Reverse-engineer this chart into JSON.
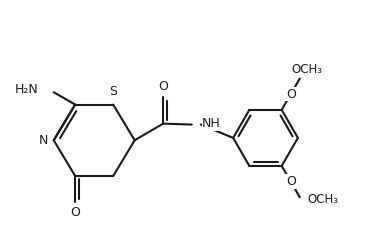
{
  "bg": "#ffffff",
  "lc": "#1a1a1a",
  "lw": 1.5,
  "fs": 9.0,
  "fig_w": 3.74,
  "fig_h": 2.52,
  "dpi": 100,
  "xlim": [
    0.0,
    7.8
  ],
  "ylim": [
    0.5,
    5.5
  ]
}
